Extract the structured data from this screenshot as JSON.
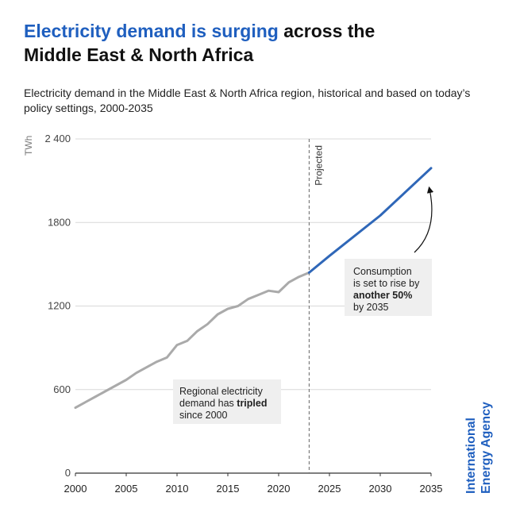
{
  "header": {
    "title_highlight": "Electricity demand is surging",
    "title_rest_line1": " across the",
    "title_line2": "Middle East & North Africa",
    "subtitle": "Electricity demand in the Middle East & North Africa region, historical and based on today’s policy settings, 2000-2035"
  },
  "chart_data": {
    "type": "line",
    "title": "Electricity demand is surging across the Middle East & North Africa",
    "subtitle": "Electricity demand in the Middle East & North Africa region, historical and based on today’s policy settings, 2000-2035",
    "xlabel": "",
    "ylabel": "TWh",
    "xlim": [
      2000,
      2035
    ],
    "ylim": [
      0,
      2400
    ],
    "x_ticks": [
      2000,
      2005,
      2010,
      2015,
      2020,
      2025,
      2030,
      2035
    ],
    "y_ticks": [
      0,
      600,
      1200,
      1800,
      2400
    ],
    "y_tick_labels": [
      "0",
      "600",
      "1200",
      "1800",
      "2 400"
    ],
    "grid": "horizontal",
    "projection_start": 2023,
    "projection_label": "Projected",
    "series": [
      {
        "color": "#aaaaaa",
        "x": [
          2000,
          2001,
          2002,
          2003,
          2004,
          2005,
          2006,
          2007,
          2008,
          2009,
          2010,
          2011,
          2012,
          2013,
          2014,
          2015,
          2016,
          2017,
          2018,
          2019,
          2020,
          2021,
          2022,
          2023
        ],
        "y": [
          470,
          510,
          550,
          590,
          630,
          670,
          720,
          760,
          800,
          830,
          920,
          950,
          1020,
          1070,
          1140,
          1180,
          1200,
          1250,
          1280,
          1310,
          1300,
          1370,
          1410,
          1440
        ]
      },
      {
        "color": "#2f67b8",
        "x": [
          2023,
          2025,
          2030,
          2035
        ],
        "y": [
          1440,
          1560,
          1850,
          2190
        ]
      }
    ],
    "annotations": [
      {
        "id": "historical",
        "lines": [
          [
            {
              "text": "Regional electricity"
            }
          ],
          [
            {
              "text": "demand has "
            },
            {
              "text": "tripled",
              "bold": true
            }
          ],
          [
            {
              "text": "since 2000"
            }
          ]
        ]
      },
      {
        "id": "projected",
        "lines": [
          [
            {
              "text": "Consumption"
            }
          ],
          [
            {
              "text": "is set to rise by"
            }
          ],
          [
            {
              "text": "another 50%",
              "bold": true
            }
          ],
          [
            {
              "text": "by 2035"
            }
          ]
        ]
      }
    ]
  },
  "brand": {
    "line1": "International",
    "line2": "Energy Agency",
    "color": "#1f5fbf"
  }
}
